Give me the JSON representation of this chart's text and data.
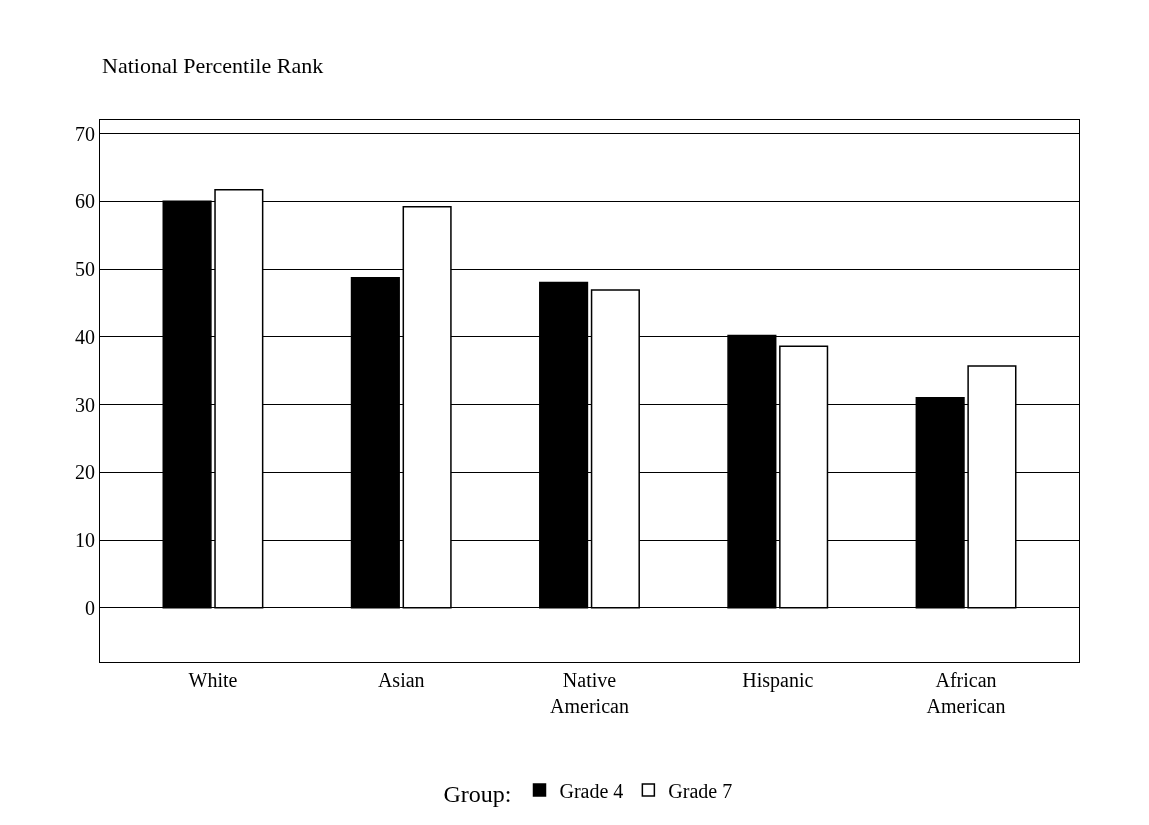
{
  "chart_data": {
    "type": "bar",
    "ylabel": "National Percentile Rank",
    "legend_title": "Group:",
    "categories": [
      "White",
      "Asian",
      "Native American",
      "Hispanic",
      "African American"
    ],
    "series": [
      {
        "name": "Grade 4",
        "color": "#000000",
        "values": [
          60,
          48.7,
          48,
          40.2,
          31
        ]
      },
      {
        "name": "Grade 7",
        "color": "#ffffff",
        "values": [
          61.7,
          59.2,
          46.9,
          38.6,
          35.7
        ]
      }
    ],
    "ylim": [
      -8,
      72
    ],
    "yticks": [
      0,
      10,
      20,
      30,
      40,
      50,
      60,
      70
    ],
    "grid": "y",
    "legend": "bottom"
  }
}
